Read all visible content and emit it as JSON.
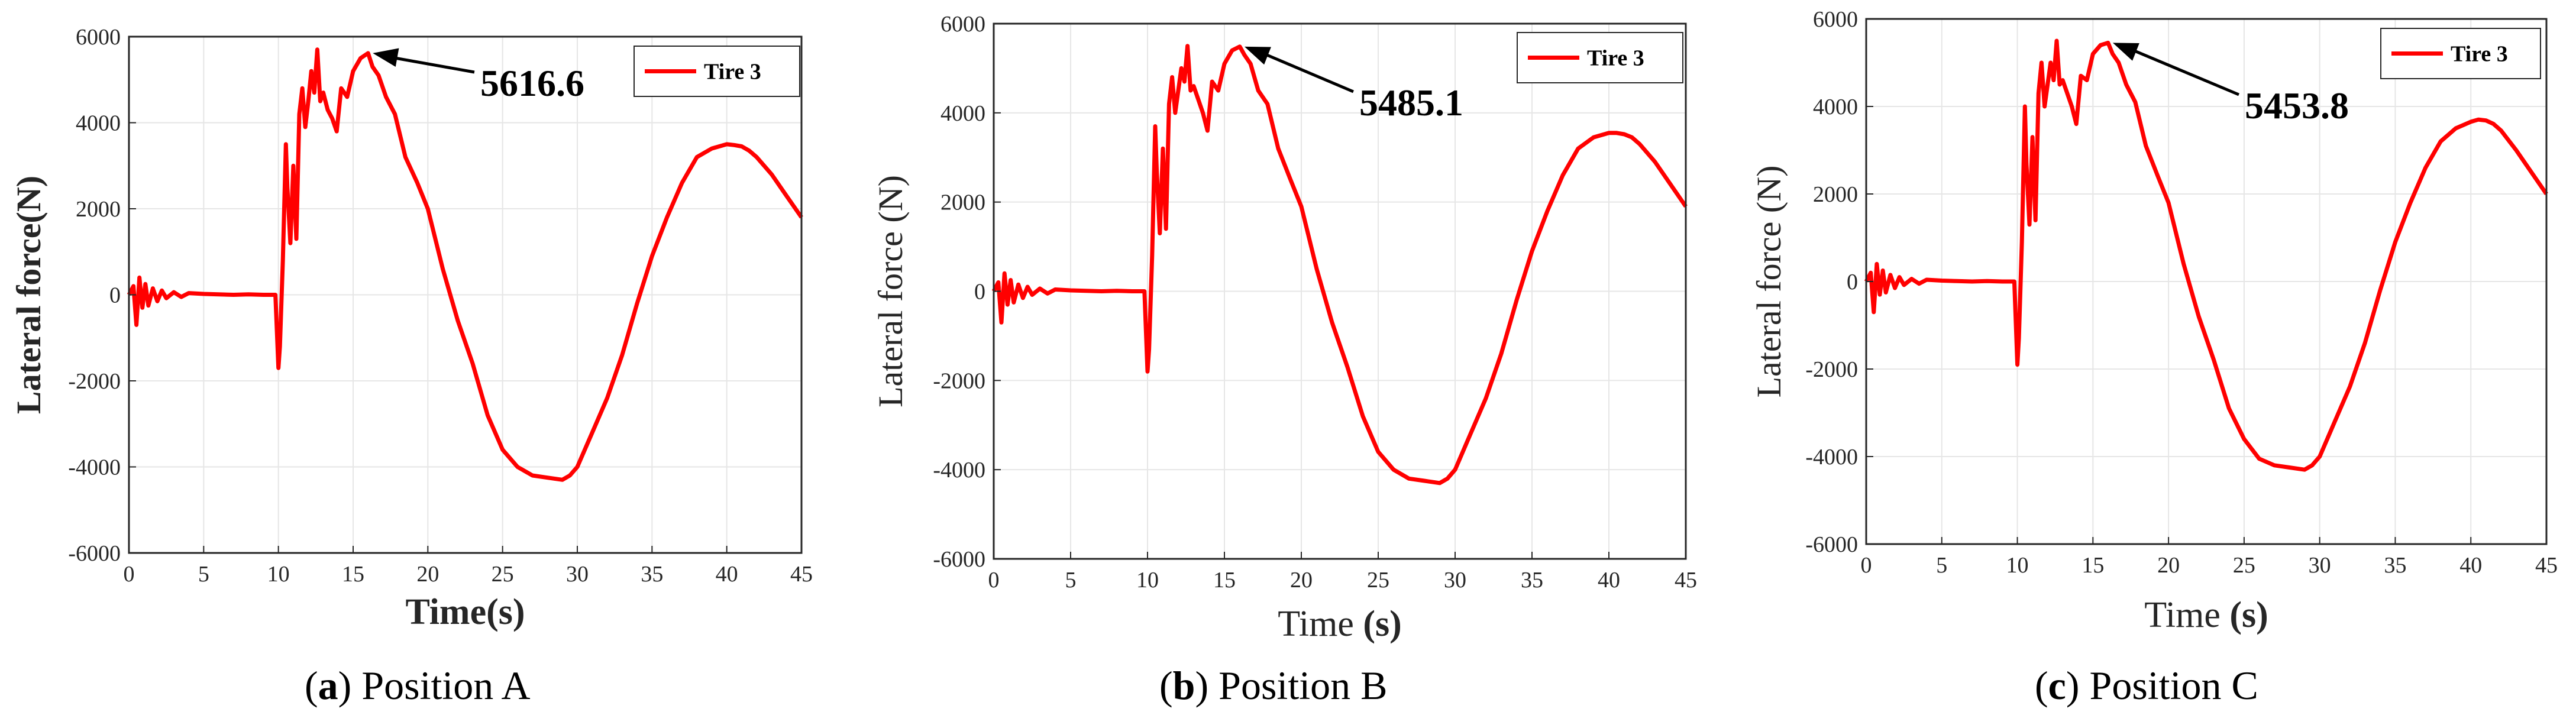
{
  "chart_data": [
    {
      "type": "line",
      "panel_letter": "a",
      "caption": "Position A",
      "xlabel": "Time(s)",
      "xlabel_unit": "",
      "ylabel": "Lateral force(N)",
      "xlim": [
        0,
        45
      ],
      "ylim": [
        -6000,
        6000
      ],
      "xticks": [
        0,
        5,
        10,
        15,
        20,
        25,
        30,
        35,
        40,
        45
      ],
      "yticks": [
        -6000,
        -4000,
        -2000,
        0,
        2000,
        4000,
        6000
      ],
      "grid": true,
      "legend": "top-right",
      "series": [
        {
          "name": "Tire 3",
          "color": "#ff0000",
          "x": [
            0,
            0.3,
            0.5,
            0.7,
            0.9,
            1.1,
            1.3,
            1.6,
            1.9,
            2.2,
            2.5,
            3.0,
            3.5,
            4.0,
            5.0,
            6.0,
            7.0,
            8.0,
            9.0,
            9.8,
            10.0,
            10.1,
            10.3,
            10.5,
            10.6,
            10.8,
            11.0,
            11.2,
            11.4,
            11.6,
            11.8,
            12.0,
            12.2,
            12.4,
            12.6,
            12.8,
            13.0,
            13.3,
            13.6,
            13.9,
            14.2,
            14.6,
            15.0,
            15.5,
            16.0,
            16.3,
            16.7,
            17.2,
            17.8,
            18.5,
            19.3,
            20.0,
            21.0,
            22.0,
            23.0,
            24.0,
            25.0,
            26.0,
            27.0,
            28.0,
            29.0,
            29.5,
            30.0,
            31.0,
            32.0,
            33.0,
            34.0,
            35.0,
            36.0,
            37.0,
            38.0,
            39.0,
            40.0,
            40.5,
            41.0,
            41.5,
            42.0,
            43.0,
            44.0,
            45.0
          ],
          "y": [
            0,
            200,
            -700,
            400,
            -300,
            250,
            -250,
            150,
            -150,
            100,
            -80,
            60,
            -50,
            40,
            20,
            10,
            0,
            10,
            0,
            0,
            -1700,
            -1200,
            800,
            3500,
            2500,
            1200,
            3000,
            1300,
            4200,
            4800,
            3900,
            4500,
            5200,
            4700,
            5700,
            4500,
            4700,
            4300,
            4100,
            3800,
            4800,
            4600,
            5200,
            5500,
            5616.6,
            5300,
            5100,
            4600,
            4200,
            3200,
            2600,
            2000,
            600,
            -600,
            -1600,
            -2800,
            -3600,
            -4000,
            -4200,
            -4250,
            -4300,
            -4200,
            -4000,
            -3200,
            -2400,
            -1400,
            -200,
            900,
            1800,
            2600,
            3200,
            3400,
            3500,
            3480,
            3450,
            3350,
            3200,
            2800,
            2300,
            1800
          ]
        }
      ],
      "annotation": {
        "text": "5616.6",
        "x": 16.0,
        "y": 5616.6
      }
    },
    {
      "type": "line",
      "panel_letter": "b",
      "caption": "Position B",
      "xlabel": "Time ",
      "xlabel_unit": "(s)",
      "ylabel": "Lateral force (N)",
      "xlim": [
        0,
        45
      ],
      "ylim": [
        -6000,
        6000
      ],
      "xticks": [
        0,
        5,
        10,
        15,
        20,
        25,
        30,
        35,
        40,
        45
      ],
      "yticks": [
        -6000,
        -4000,
        -2000,
        0,
        2000,
        4000,
        6000
      ],
      "grid": true,
      "legend": "top-right",
      "series": [
        {
          "name": "Tire 3",
          "color": "#ff0000",
          "x": [
            0,
            0.3,
            0.5,
            0.7,
            0.9,
            1.1,
            1.3,
            1.6,
            1.9,
            2.2,
            2.5,
            3.0,
            3.5,
            4.0,
            5.0,
            6.0,
            7.0,
            8.0,
            9.0,
            9.8,
            10.0,
            10.1,
            10.3,
            10.5,
            10.6,
            10.8,
            11.0,
            11.2,
            11.4,
            11.6,
            11.8,
            12.0,
            12.2,
            12.4,
            12.6,
            12.8,
            13.0,
            13.3,
            13.6,
            13.9,
            14.2,
            14.6,
            15.0,
            15.5,
            16.0,
            16.3,
            16.7,
            17.2,
            17.8,
            18.5,
            19.3,
            20.0,
            21.0,
            22.0,
            23.0,
            24.0,
            25.0,
            26.0,
            27.0,
            28.0,
            29.0,
            29.5,
            30.0,
            31.0,
            32.0,
            33.0,
            34.0,
            35.0,
            36.0,
            37.0,
            38.0,
            39.0,
            40.0,
            40.5,
            41.0,
            41.5,
            42.0,
            43.0,
            44.0,
            45.0
          ],
          "y": [
            0,
            200,
            -700,
            400,
            -300,
            250,
            -250,
            150,
            -150,
            100,
            -80,
            60,
            -50,
            40,
            20,
            10,
            0,
            10,
            0,
            0,
            -1800,
            -1300,
            800,
            3700,
            2700,
            1300,
            3200,
            1400,
            4200,
            4800,
            4000,
            4500,
            5000,
            4700,
            5500,
            4500,
            4600,
            4300,
            4000,
            3600,
            4700,
            4500,
            5100,
            5400,
            5485.1,
            5300,
            5100,
            4500,
            4200,
            3200,
            2500,
            1900,
            500,
            -700,
            -1700,
            -2800,
            -3600,
            -4000,
            -4200,
            -4250,
            -4300,
            -4200,
            -4000,
            -3200,
            -2400,
            -1400,
            -200,
            900,
            1800,
            2600,
            3200,
            3450,
            3550,
            3550,
            3520,
            3450,
            3300,
            2900,
            2400,
            1900
          ]
        }
      ],
      "annotation": {
        "text": "5485.1",
        "x": 16.0,
        "y": 5485.1
      }
    },
    {
      "type": "line",
      "panel_letter": "c",
      "caption": "Position C",
      "xlabel": "Time ",
      "xlabel_unit": "(s)",
      "ylabel": "Lateral force (N)",
      "xlim": [
        0,
        45
      ],
      "ylim": [
        -6000,
        6000
      ],
      "xticks": [
        0,
        5,
        10,
        15,
        20,
        25,
        30,
        35,
        40,
        45
      ],
      "yticks": [
        -6000,
        -4000,
        -2000,
        0,
        2000,
        4000,
        6000
      ],
      "grid": true,
      "legend": "top-right",
      "series": [
        {
          "name": "Tire 3",
          "color": "#ff0000",
          "x": [
            0,
            0.3,
            0.5,
            0.7,
            0.9,
            1.1,
            1.3,
            1.6,
            1.9,
            2.2,
            2.5,
            3.0,
            3.5,
            4.0,
            5.0,
            6.0,
            7.0,
            8.0,
            9.0,
            9.8,
            10.0,
            10.1,
            10.3,
            10.5,
            10.6,
            10.8,
            11.0,
            11.2,
            11.4,
            11.6,
            11.8,
            12.0,
            12.2,
            12.4,
            12.6,
            12.8,
            13.0,
            13.3,
            13.6,
            13.9,
            14.2,
            14.6,
            15.0,
            15.5,
            16.0,
            16.3,
            16.7,
            17.2,
            17.8,
            18.5,
            19.3,
            20.0,
            21.0,
            22.0,
            23.0,
            24.0,
            25.0,
            26.0,
            27.0,
            28.0,
            29.0,
            29.5,
            30.0,
            31.0,
            32.0,
            33.0,
            34.0,
            35.0,
            36.0,
            37.0,
            38.0,
            39.0,
            40.0,
            40.5,
            41.0,
            41.5,
            42.0,
            43.0,
            44.0,
            45.0
          ],
          "y": [
            0,
            200,
            -700,
            400,
            -300,
            250,
            -250,
            150,
            -150,
            100,
            -80,
            60,
            -50,
            40,
            20,
            10,
            0,
            10,
            0,
            0,
            -1900,
            -1300,
            900,
            4000,
            2700,
            1300,
            3300,
            1400,
            4300,
            5000,
            4000,
            4500,
            5000,
            4600,
            5500,
            4500,
            4600,
            4300,
            4000,
            3600,
            4700,
            4600,
            5200,
            5400,
            5453.8,
            5200,
            5000,
            4500,
            4100,
            3100,
            2400,
            1800,
            400,
            -800,
            -1800,
            -2900,
            -3600,
            -4050,
            -4200,
            -4250,
            -4300,
            -4200,
            -4000,
            -3200,
            -2400,
            -1400,
            -200,
            900,
            1800,
            2600,
            3200,
            3500,
            3650,
            3700,
            3680,
            3600,
            3450,
            3000,
            2500,
            2000
          ]
        }
      ],
      "annotation": {
        "text": "5453.8",
        "x": 16.0,
        "y": 5453.8
      }
    }
  ]
}
